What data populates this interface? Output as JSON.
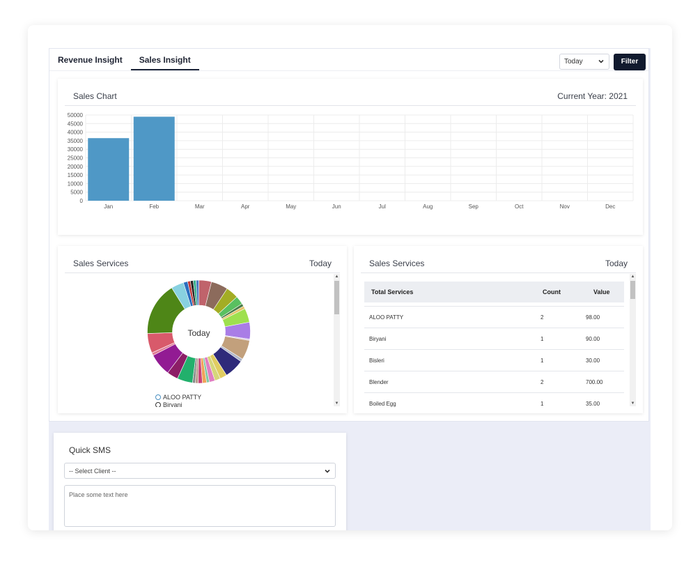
{
  "tabs": [
    {
      "label": "Revenue Insight",
      "active": false
    },
    {
      "label": "Sales Insight",
      "active": true
    }
  ],
  "filter": {
    "period_value": "Today",
    "button_label": "Filter"
  },
  "sales_chart": {
    "title": "Sales Chart",
    "subtitle": "Current Year: 2021",
    "chart_data": {
      "type": "bar",
      "categories": [
        "Jan",
        "Feb",
        "Mar",
        "Apr",
        "May",
        "Jun",
        "Jul",
        "Aug",
        "Sep",
        "Oct",
        "Nov",
        "Dec"
      ],
      "values": [
        36500,
        49000,
        0,
        0,
        0,
        0,
        0,
        0,
        0,
        0,
        0,
        0
      ],
      "ylim": [
        0,
        50000
      ],
      "yticks": [
        0,
        5000,
        10000,
        15000,
        20000,
        25000,
        30000,
        35000,
        40000,
        45000,
        50000
      ],
      "bar_color": "#4f98c6",
      "grid": true,
      "title": "",
      "xlabel": "",
      "ylabel": ""
    }
  },
  "donut_card": {
    "title": "Sales Services",
    "period": "Today",
    "center_label": "Today",
    "legend": [
      "ALOO PATTY",
      "Biryani"
    ],
    "chart_data": {
      "type": "pie",
      "slices": [
        {
          "value": 9,
          "color": "#c0636b"
        },
        {
          "value": 12,
          "color": "#8c6b5c"
        },
        {
          "value": 9,
          "color": "#a3ad24"
        },
        {
          "value": 6,
          "color": "#59c060"
        },
        {
          "value": 2,
          "color": "#4a7a4a"
        },
        {
          "value": 2,
          "color": "#e6c36a"
        },
        {
          "value": 10,
          "color": "#9ee04f"
        },
        {
          "value": 12,
          "color": "#a97de6"
        },
        {
          "value": 1,
          "color": "#d8c6e0"
        },
        {
          "value": 14,
          "color": "#c2a07c"
        },
        {
          "value": 2,
          "color": "#b0b6c8"
        },
        {
          "value": 14,
          "color": "#2e2a7a"
        },
        {
          "value": 5,
          "color": "#e1cd61"
        },
        {
          "value": 4,
          "color": "#d6d67a"
        },
        {
          "value": 4,
          "color": "#e07ec2"
        },
        {
          "value": 2,
          "color": "#7fc9a3"
        },
        {
          "value": 3,
          "color": "#f0a35b"
        },
        {
          "value": 3,
          "color": "#c9437a"
        },
        {
          "value": 2,
          "color": "#b89a8a"
        },
        {
          "value": 2,
          "color": "#8a8a8a"
        },
        {
          "value": 11,
          "color": "#22b06c"
        },
        {
          "value": 8,
          "color": "#8c1e66"
        },
        {
          "value": 16,
          "color": "#921b93"
        },
        {
          "value": 2,
          "color": "#e07b95"
        },
        {
          "value": 14,
          "color": "#d85a6b"
        },
        {
          "value": 38,
          "color": "#4e8617"
        },
        {
          "value": 9,
          "color": "#88d1e0"
        },
        {
          "value": 3,
          "color": "#2a6fbf"
        },
        {
          "value": 2,
          "color": "#c23a3a"
        },
        {
          "value": 2,
          "color": "#222222"
        },
        {
          "value": 2,
          "color": "#3ab08c"
        },
        {
          "value": 2,
          "color": "#4a7ac2"
        }
      ]
    }
  },
  "table_card": {
    "title": "Sales Services",
    "period": "Today",
    "headers": {
      "service": "Total Services",
      "count": "Count",
      "value": "Value"
    },
    "rows": [
      {
        "service": "ALOO PATTY",
        "count": "2",
        "value": "98.00"
      },
      {
        "service": "Biryani",
        "count": "1",
        "value": "90.00"
      },
      {
        "service": "Bisleri",
        "count": "1",
        "value": "30.00"
      },
      {
        "service": "Blender",
        "count": "2",
        "value": "700.00"
      },
      {
        "service": "Boiled Egg",
        "count": "1",
        "value": "35.00"
      }
    ]
  },
  "quick_sms": {
    "title": "Quick SMS",
    "client_placeholder": "-- Select Client --",
    "text_placeholder": "Place some text here"
  }
}
